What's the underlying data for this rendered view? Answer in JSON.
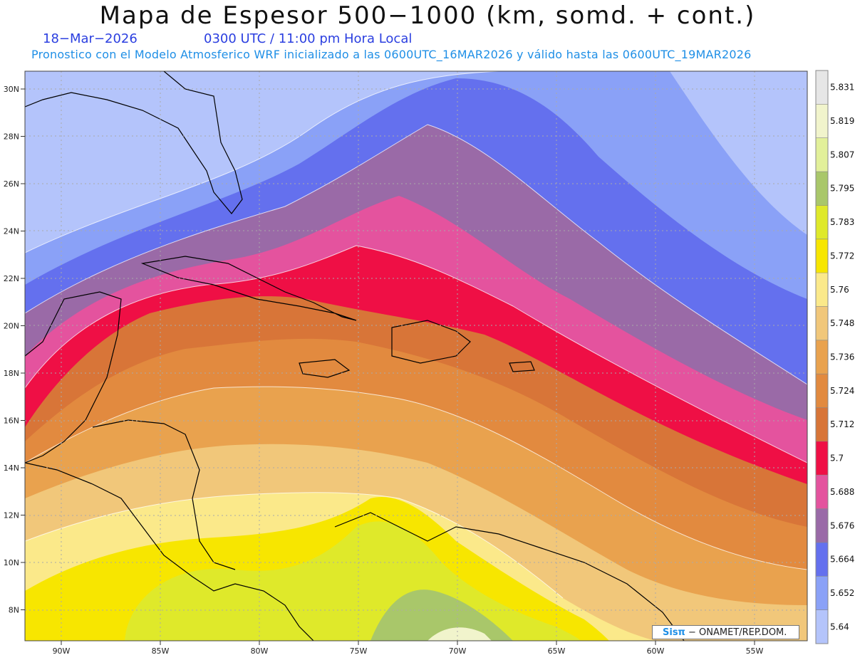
{
  "title": "Mapa de Espesor 500−1000 (km, somd. + cont.)",
  "date": "18−Mar−2026",
  "time": "0300 UTC / 11:00 pm Hora Local",
  "forecast": "Pronostico con el Modelo Atmosferico WRF inicializado a las 0600UTC_16MAR2026 y válido hasta las  0600UTC_19MAR2026",
  "credit_logo": "Sisπ",
  "credit_text": "− ONAMET/REP.DOM.",
  "lat_labels": [
    "30N",
    "28N",
    "26N",
    "24N",
    "22N",
    "20N",
    "18N",
    "16N",
    "14N",
    "12N",
    "10N",
    "8N"
  ],
  "lon_labels": [
    "90W",
    "85W",
    "80W",
    "75W",
    "70W",
    "65W",
    "60W",
    "55W"
  ],
  "colorbar": {
    "labels": [
      "5.831",
      "5.819",
      "5.807",
      "5.795",
      "5.783",
      "5.772",
      "5.76",
      "5.748",
      "5.736",
      "5.724",
      "5.712",
      "5.7",
      "5.688",
      "5.676",
      "5.664",
      "5.652",
      "5.64"
    ],
    "colors": [
      "#e6e6e6",
      "#f1f4cc",
      "#e2f09a",
      "#a9c76a",
      "#dfe92a",
      "#f7e600",
      "#fbe98a",
      "#f1c77a",
      "#e9a24e",
      "#e28a3f",
      "#d87538",
      "#ef0f45",
      "#e4539e",
      "#9a6aa7",
      "#6470ee",
      "#8aa1f7",
      "#b4c4fb"
    ]
  },
  "colors": {
    "land_outline": "#000000",
    "grid": "#aaaaaa",
    "contour": "#ffffff"
  }
}
